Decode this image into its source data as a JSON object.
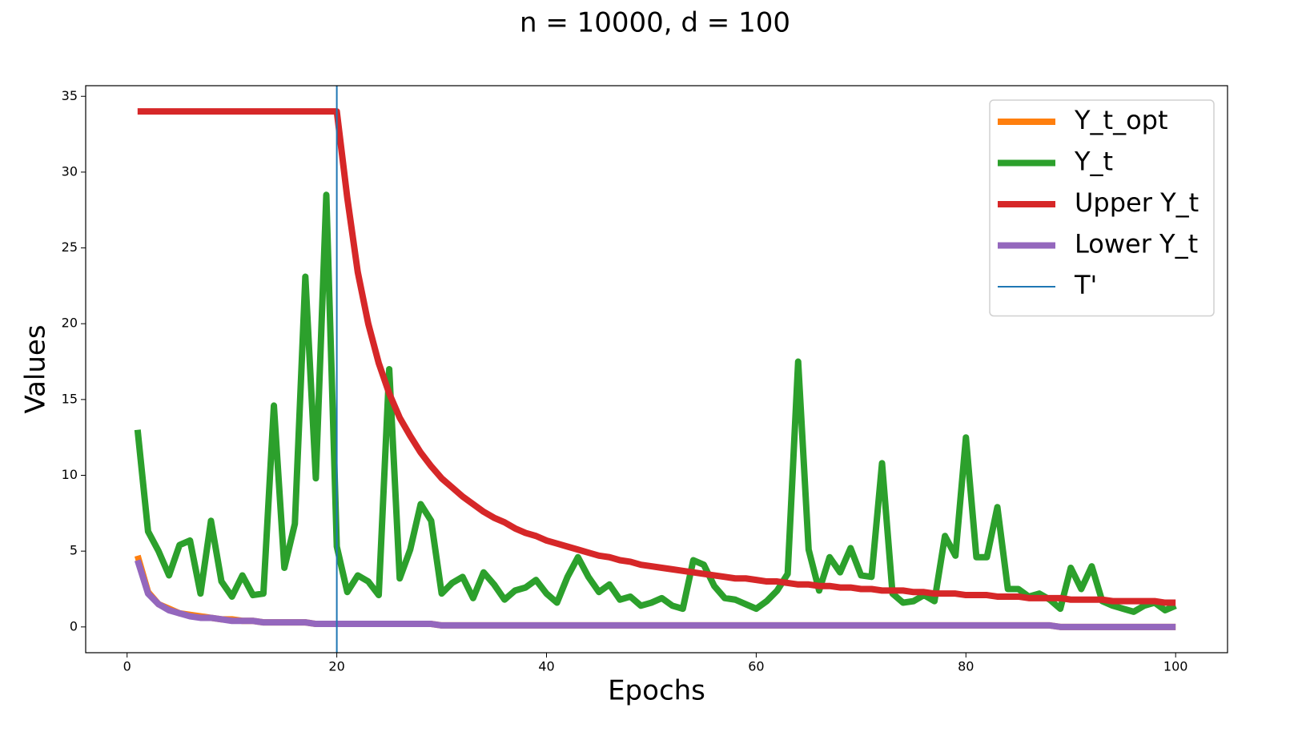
{
  "chart_data": {
    "type": "line",
    "title": "n = 10000, d = 100",
    "xlabel": "Epochs",
    "ylabel": "Values",
    "x": [
      1,
      2,
      3,
      4,
      5,
      6,
      7,
      8,
      9,
      10,
      11,
      12,
      13,
      14,
      15,
      16,
      17,
      18,
      19,
      20,
      21,
      22,
      23,
      24,
      25,
      26,
      27,
      28,
      29,
      30,
      31,
      32,
      33,
      34,
      35,
      36,
      37,
      38,
      39,
      40,
      41,
      42,
      43,
      44,
      45,
      46,
      47,
      48,
      49,
      50,
      51,
      52,
      53,
      54,
      55,
      56,
      57,
      58,
      59,
      60,
      61,
      62,
      63,
      64,
      65,
      66,
      67,
      68,
      69,
      70,
      71,
      72,
      73,
      74,
      75,
      76,
      77,
      78,
      79,
      80,
      81,
      82,
      83,
      84,
      85,
      86,
      87,
      88,
      89,
      90,
      91,
      92,
      93,
      94,
      95,
      96,
      97,
      98,
      99,
      100
    ],
    "series": [
      {
        "name": "Y_t_opt",
        "color": "#ff7f0e",
        "values": [
          4.7,
          2.3,
          1.5,
          1.2,
          0.9,
          0.8,
          0.7,
          0.6,
          0.5,
          0.5,
          0.4,
          0.4,
          0.3,
          0.3,
          0.3,
          0.3,
          0.3,
          0.2,
          0.2,
          0.2,
          0.2,
          0.2,
          0.2,
          0.2,
          0.2,
          0.2,
          0.2,
          0.2,
          0.2,
          0.1,
          0.1,
          0.1,
          0.1,
          0.1,
          0.1,
          0.1,
          0.1,
          0.1,
          0.1,
          0.1,
          0.1,
          0.1,
          0.1,
          0.1,
          0.1,
          0.1,
          0.1,
          0.1,
          0.1,
          0.1,
          0.1,
          0.1,
          0.1,
          0.1,
          0.1,
          0.1,
          0.1,
          0.1,
          0.1,
          0.1,
          0.1,
          0.1,
          0.1,
          0.1,
          0.1,
          0.1,
          0.1,
          0.1,
          0.1,
          0.1,
          0.1,
          0.1,
          0.1,
          0.1,
          0.1,
          0.1,
          0.1,
          0.1,
          0.1,
          0.1,
          0.1,
          0.1,
          0.1,
          0.1,
          0.1,
          0.1,
          0.1,
          0.1,
          0.0,
          0.0,
          0.0,
          0.0,
          0.0,
          0.0,
          0.0,
          0.0,
          0.0,
          0.0,
          0.0,
          0.0
        ]
      },
      {
        "name": "Y_t",
        "color": "#2ca02c",
        "values": [
          13.0,
          6.3,
          5.0,
          3.4,
          5.4,
          5.7,
          2.2,
          7.0,
          3.0,
          2.0,
          3.4,
          2.1,
          2.2,
          14.6,
          3.9,
          6.8,
          23.1,
          9.8,
          28.5,
          5.3,
          2.3,
          3.4,
          3.0,
          2.1,
          17.0,
          3.2,
          5.1,
          8.1,
          7.0,
          2.2,
          2.9,
          3.3,
          1.9,
          3.6,
          2.8,
          1.8,
          2.4,
          2.6,
          3.1,
          2.2,
          1.6,
          3.3,
          4.6,
          3.3,
          2.3,
          2.8,
          1.8,
          2.0,
          1.4,
          1.6,
          1.9,
          1.4,
          1.2,
          4.4,
          4.1,
          2.7,
          1.9,
          1.8,
          1.5,
          1.2,
          1.7,
          2.4,
          3.5,
          17.5,
          5.1,
          2.4,
          4.6,
          3.6,
          5.2,
          3.4,
          3.3,
          10.8,
          2.2,
          1.6,
          1.7,
          2.1,
          1.7,
          6.0,
          4.7,
          12.5,
          4.6,
          4.6,
          7.9,
          2.5,
          2.5,
          2.0,
          2.2,
          1.8,
          1.2,
          3.9,
          2.5,
          4.0,
          1.7,
          1.4,
          1.2,
          1.0,
          1.4,
          1.6,
          1.1,
          1.4
        ]
      },
      {
        "name": "Upper Y_t",
        "color": "#d62728",
        "values": [
          34,
          34,
          34,
          34,
          34,
          34,
          34,
          34,
          34,
          34,
          34,
          34,
          34,
          34,
          34,
          34,
          34,
          34,
          34,
          34,
          28.3,
          23.4,
          20.0,
          17.4,
          15.4,
          13.8,
          12.6,
          11.5,
          10.6,
          9.8,
          9.2,
          8.6,
          8.1,
          7.6,
          7.2,
          6.9,
          6.5,
          6.2,
          6.0,
          5.7,
          5.5,
          5.3,
          5.1,
          4.9,
          4.7,
          4.6,
          4.4,
          4.3,
          4.1,
          4.0,
          3.9,
          3.8,
          3.7,
          3.6,
          3.5,
          3.4,
          3.3,
          3.2,
          3.2,
          3.1,
          3.0,
          3.0,
          2.9,
          2.8,
          2.8,
          2.7,
          2.7,
          2.6,
          2.6,
          2.5,
          2.5,
          2.4,
          2.4,
          2.4,
          2.3,
          2.3,
          2.2,
          2.2,
          2.2,
          2.1,
          2.1,
          2.1,
          2.0,
          2.0,
          2.0,
          1.9,
          1.9,
          1.9,
          1.9,
          1.8,
          1.8,
          1.8,
          1.8,
          1.7,
          1.7,
          1.7,
          1.7,
          1.7,
          1.6,
          1.6
        ]
      },
      {
        "name": "Lower Y_t",
        "color": "#9467bd",
        "values": [
          4.4,
          2.2,
          1.5,
          1.1,
          0.9,
          0.7,
          0.6,
          0.6,
          0.5,
          0.4,
          0.4,
          0.4,
          0.3,
          0.3,
          0.3,
          0.3,
          0.3,
          0.2,
          0.2,
          0.2,
          0.2,
          0.2,
          0.2,
          0.2,
          0.2,
          0.2,
          0.2,
          0.2,
          0.2,
          0.1,
          0.1,
          0.1,
          0.1,
          0.1,
          0.1,
          0.1,
          0.1,
          0.1,
          0.1,
          0.1,
          0.1,
          0.1,
          0.1,
          0.1,
          0.1,
          0.1,
          0.1,
          0.1,
          0.1,
          0.1,
          0.1,
          0.1,
          0.1,
          0.1,
          0.1,
          0.1,
          0.1,
          0.1,
          0.1,
          0.1,
          0.1,
          0.1,
          0.1,
          0.1,
          0.1,
          0.1,
          0.1,
          0.1,
          0.1,
          0.1,
          0.1,
          0.1,
          0.1,
          0.1,
          0.1,
          0.1,
          0.1,
          0.1,
          0.1,
          0.1,
          0.1,
          0.1,
          0.1,
          0.1,
          0.1,
          0.1,
          0.1,
          0.1,
          0.0,
          0.0,
          0.0,
          0.0,
          0.0,
          0.0,
          0.0,
          0.0,
          0.0,
          0.0,
          0.0,
          0.0
        ]
      }
    ],
    "vline": {
      "name": "T'",
      "x": 20,
      "color": "#1f77b4"
    },
    "xlim": [
      -3.95,
      104.95
    ],
    "xticks": [
      0,
      20,
      40,
      60,
      80,
      100
    ],
    "ylim": [
      -1.7,
      35.7
    ],
    "yticks": [
      0,
      5,
      10,
      15,
      20,
      25,
      30,
      35
    ],
    "legend": "upper right"
  }
}
